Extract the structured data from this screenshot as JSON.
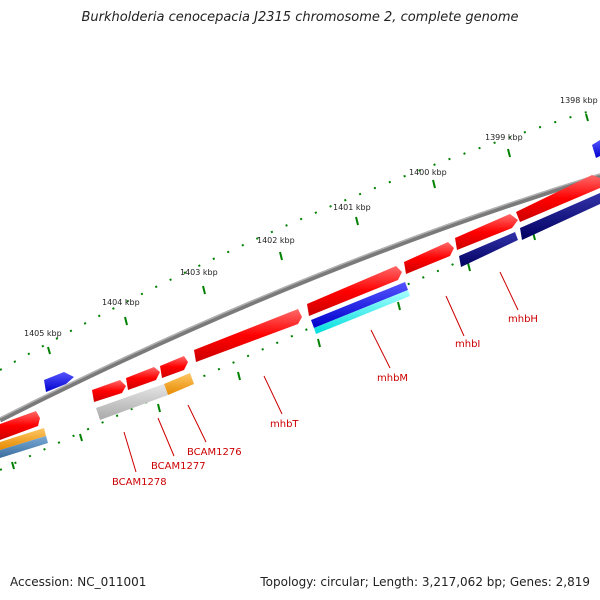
{
  "title": "Burkholderia cenocepacia J2315 chromosome 2, complete genome",
  "footer": {
    "accession": "Accession: NC_011001",
    "summary": "Topology: circular; Length: 3,217,062 bp; Genes: 2,819"
  },
  "scale_labels": [
    "1398 kbp",
    "1399 kbp",
    "1400 kbp",
    "1401 kbp",
    "1402 kbp",
    "1403 kbp",
    "1404 kbp",
    "1405 kbp"
  ],
  "gene_labels": [
    "mhbH",
    "mhbI",
    "mhbM",
    "mhbT",
    "BCAM1276",
    "BCAM1277",
    "BCAM1278"
  ],
  "colors": {
    "backbone": "#808080",
    "forward_cds": "#ff0000",
    "reverse_cds": "#ff0000",
    "blue_feature": "#0000ff",
    "navy_feature": "#000080",
    "cyan_feature": "#00ffff",
    "orange_feature": "#ffa500",
    "gray_feature": "#c0c0c0",
    "steelblue_feature": "#4682b4",
    "tick_color": "#008000",
    "label_color": "#cc0000"
  }
}
